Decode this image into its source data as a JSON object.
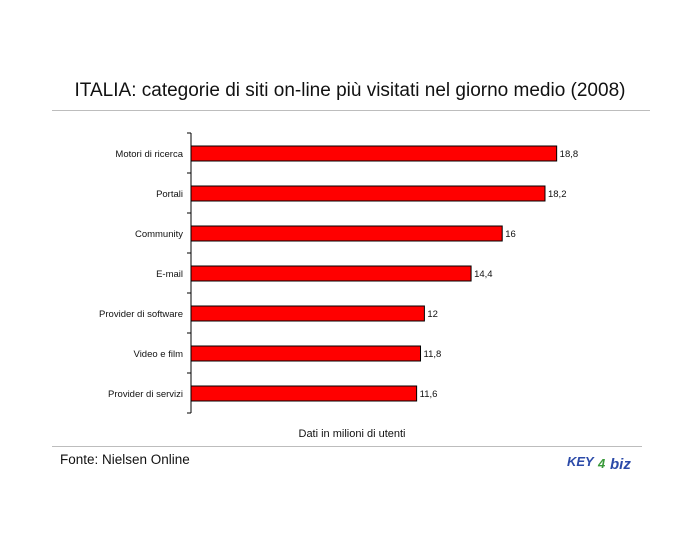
{
  "title": "ITALIA: categorie di siti on-line più visitati nel giorno medio (2008)",
  "note": "Dati in milioni di utenti",
  "source": "Fonte: Nielsen Online",
  "logo": {
    "text_key": "KEY",
    "text_4": "4",
    "text_biz": "biz"
  },
  "colors": {
    "bar": "#ff0000",
    "bar_stroke": "#000000",
    "logo_blue": "#2b4aa8",
    "logo_green": "#3a9a3a"
  },
  "chart_data": {
    "type": "bar",
    "orientation": "horizontal",
    "categories": [
      "Motori di ricerca",
      "Portali",
      "Community",
      "E-mail",
      "Provider di software",
      "Video e film",
      "Provider di servizi"
    ],
    "values": [
      18.8,
      18.2,
      16,
      14.4,
      12,
      11.8,
      11.6
    ],
    "value_labels": [
      "18,8",
      "18,2",
      "16",
      "14,4",
      "12",
      "11,8",
      "11,6"
    ],
    "xlim": [
      0,
      20
    ],
    "grid": false,
    "legend": "none"
  }
}
